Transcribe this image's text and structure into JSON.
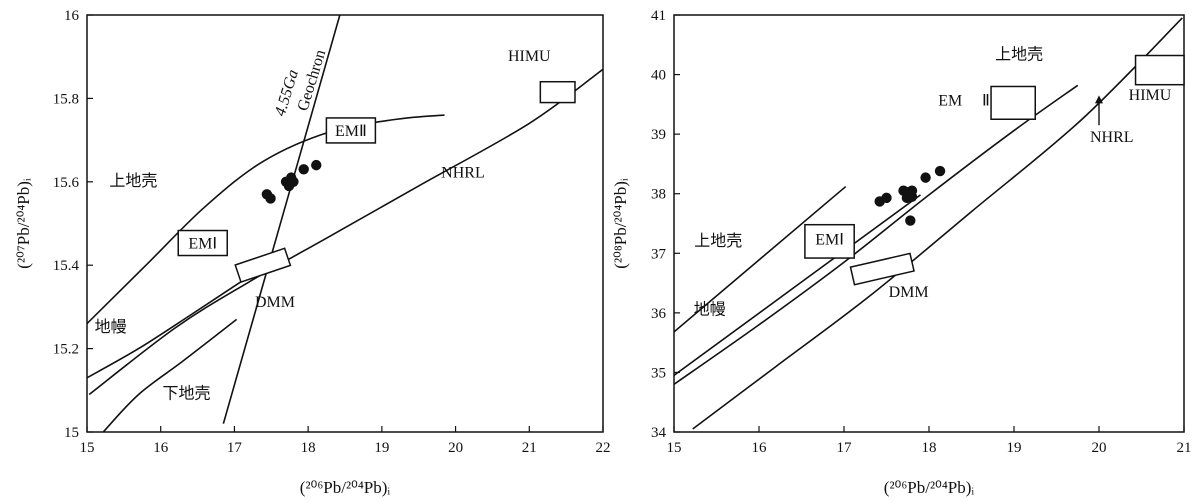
{
  "chart_data": [
    {
      "type": "scatter",
      "xlabel": "(²⁰⁶Pb/²⁰⁴Pb)ᵢ",
      "ylabel": "(²⁰⁷Pb/²⁰⁴Pb)ᵢ",
      "xlim": [
        15,
        22
      ],
      "ylim": [
        15,
        16
      ],
      "xticks": [
        "15",
        "16",
        "17",
        "18",
        "19",
        "20",
        "21",
        "22"
      ],
      "yticks": [
        "15",
        "15.2",
        "15.4",
        "15.6",
        "15.8",
        "16"
      ],
      "grid": false,
      "points": [
        {
          "x": 17.44,
          "y": 15.57
        },
        {
          "x": 17.49,
          "y": 15.56
        },
        {
          "x": 17.7,
          "y": 15.6
        },
        {
          "x": 17.74,
          "y": 15.59
        },
        {
          "x": 17.77,
          "y": 15.61
        },
        {
          "x": 17.8,
          "y": 15.6
        },
        {
          "x": 17.94,
          "y": 15.63
        },
        {
          "x": 18.11,
          "y": 15.64
        }
      ],
      "lines": [
        {
          "label": "NHRL",
          "points": [
            [
              15.03,
              15.09
            ],
            [
              16.2,
              15.25
            ],
            [
              17.2,
              15.36
            ],
            [
              18.3,
              15.47
            ],
            [
              19.5,
              15.59
            ],
            [
              21.0,
              15.74
            ],
            [
              22.0,
              15.87
            ]
          ]
        },
        {
          "label": "4.55Ga Geochron",
          "points": [
            [
              16.85,
              15.02
            ],
            [
              18.43,
              16.0
            ]
          ]
        },
        {
          "label": "上地壳",
          "points": [
            [
              15.0,
              15.26
            ],
            [
              15.8,
              15.4
            ],
            [
              16.6,
              15.54
            ],
            [
              17.4,
              15.65
            ],
            [
              18.3,
              15.72
            ],
            [
              19.2,
              15.75
            ],
            [
              19.85,
              15.76
            ]
          ]
        },
        {
          "label": "地幔",
          "points": [
            [
              15.0,
              15.13
            ],
            [
              15.7,
              15.2
            ],
            [
              16.4,
              15.28
            ],
            [
              17.0,
              15.35
            ],
            [
              17.7,
              15.43
            ]
          ]
        },
        {
          "label": "下地壳",
          "points": [
            [
              15.22,
              15.0
            ],
            [
              15.7,
              15.09
            ],
            [
              16.3,
              15.17
            ],
            [
              17.03,
              15.27
            ]
          ]
        }
      ],
      "boxes": [
        {
          "label": "HIMU",
          "x": [
            21.15,
            21.62
          ],
          "y": [
            15.79,
            15.84
          ]
        },
        {
          "label": "DMM",
          "x": [
            17.05,
            17.72
          ],
          "y": [
            15.38,
            15.42
          ],
          "rotated": true
        }
      ],
      "annotations": [
        {
          "text": "HIMU",
          "x": 21.0,
          "y": 15.89,
          "boxed": false
        },
        {
          "text": "EMⅡ",
          "x": 18.58,
          "y": 15.71,
          "boxed": true
        },
        {
          "text": "EMⅠ",
          "x": 16.57,
          "y": 15.44,
          "boxed": true
        },
        {
          "text": "NHRL",
          "x": 20.1,
          "y": 15.61,
          "boxed": false
        },
        {
          "text": "DMM",
          "x": 17.55,
          "y": 15.3,
          "boxed": false
        },
        {
          "text": "上地壳",
          "x": 15.63,
          "y": 15.59,
          "boxed": false
        },
        {
          "text": "地幔",
          "x": 15.32,
          "y": 15.24,
          "boxed": false
        },
        {
          "text": "下地壳",
          "x": 16.35,
          "y": 15.08,
          "boxed": false
        },
        {
          "text": "4.55Ga",
          "x": 17.77,
          "y": 15.81,
          "boxed": false,
          "rotate": -73
        },
        {
          "text": "Geochron",
          "x": 18.11,
          "y": 15.84,
          "boxed": false,
          "rotate": -73
        }
      ]
    },
    {
      "type": "scatter",
      "xlabel": "(²⁰⁶Pb/²⁰⁴Pb)ᵢ",
      "ylabel": "(²⁰⁸Pb/²⁰⁴Pb)ᵢ",
      "xlim": [
        15,
        21
      ],
      "ylim": [
        34,
        41
      ],
      "xticks": [
        "15",
        "16",
        "17",
        "18",
        "19",
        "20",
        "21"
      ],
      "yticks": [
        "34",
        "35",
        "36",
        "37",
        "38",
        "39",
        "40",
        "41"
      ],
      "grid": false,
      "points": [
        {
          "x": 17.42,
          "y": 37.87
        },
        {
          "x": 17.5,
          "y": 37.93
        },
        {
          "x": 17.7,
          "y": 38.05
        },
        {
          "x": 17.74,
          "y": 37.93
        },
        {
          "x": 17.77,
          "y": 38.03
        },
        {
          "x": 17.8,
          "y": 37.95
        },
        {
          "x": 17.8,
          "y": 38.05
        },
        {
          "x": 17.96,
          "y": 38.27
        },
        {
          "x": 18.13,
          "y": 38.38
        },
        {
          "x": 17.78,
          "y": 37.55
        }
      ],
      "lines": [
        {
          "label": "上地壳",
          "points": [
            [
              15.0,
              35.68
            ],
            [
              17.02,
              38.12
            ]
          ]
        },
        {
          "label": "地幔",
          "points": [
            [
              15.0,
              34.95
            ],
            [
              17.9,
              37.98
            ]
          ]
        },
        {
          "label": "NHRL",
          "points": [
            [
              15.0,
              34.8
            ],
            [
              16.0,
              35.8
            ],
            [
              17.0,
              36.85
            ],
            [
              18.0,
              37.98
            ],
            [
              19.0,
              39.06
            ],
            [
              19.75,
              39.82
            ]
          ]
        },
        {
          "label": "",
          "points": [
            [
              15.22,
              34.05
            ],
            [
              16.2,
              35.1
            ],
            [
              17.3,
              36.28
            ],
            [
              18.5,
              37.7
            ],
            [
              19.8,
              39.25
            ],
            [
              20.98,
              40.95
            ]
          ]
        }
      ],
      "boxes": [
        {
          "label": "EMⅠ",
          "x": [
            16.54,
            17.12
          ],
          "y": [
            36.92,
            37.48
          ]
        },
        {
          "label": "EMⅡ",
          "x": [
            18.73,
            19.25
          ],
          "y": [
            39.25,
            39.8
          ]
        },
        {
          "label": "HIMU",
          "x": [
            20.43,
            21.0
          ],
          "y": [
            39.83,
            40.32
          ]
        },
        {
          "label": "DMM",
          "x": [
            17.1,
            17.8
          ],
          "y": [
            36.62,
            36.85
          ],
          "rotated": true
        }
      ],
      "annotations": [
        {
          "text": "上地壳",
          "x": 19.06,
          "y": 40.25,
          "boxed": false
        },
        {
          "text": "上地壳",
          "x": 15.52,
          "y": 37.12,
          "boxed": false
        },
        {
          "text": "地幔",
          "x": 15.42,
          "y": 35.97,
          "boxed": false
        },
        {
          "text": "EM",
          "x": 18.25,
          "y": 39.48,
          "boxed": false
        },
        {
          "text": "Ⅱ",
          "x": 18.67,
          "y": 39.48,
          "boxed": false
        },
        {
          "text": "EMⅠ",
          "x": 16.83,
          "y": 37.15,
          "boxed": false
        },
        {
          "text": "HIMU",
          "x": 20.6,
          "y": 39.57,
          "boxed": false
        },
        {
          "text": "NHRL",
          "x": 20.15,
          "y": 38.87,
          "boxed": false
        },
        {
          "text": "DMM",
          "x": 17.76,
          "y": 36.27,
          "boxed": false
        }
      ],
      "arrows": [
        {
          "x": 20.0,
          "y_from": 39.15,
          "y_to": 39.65
        }
      ]
    }
  ]
}
